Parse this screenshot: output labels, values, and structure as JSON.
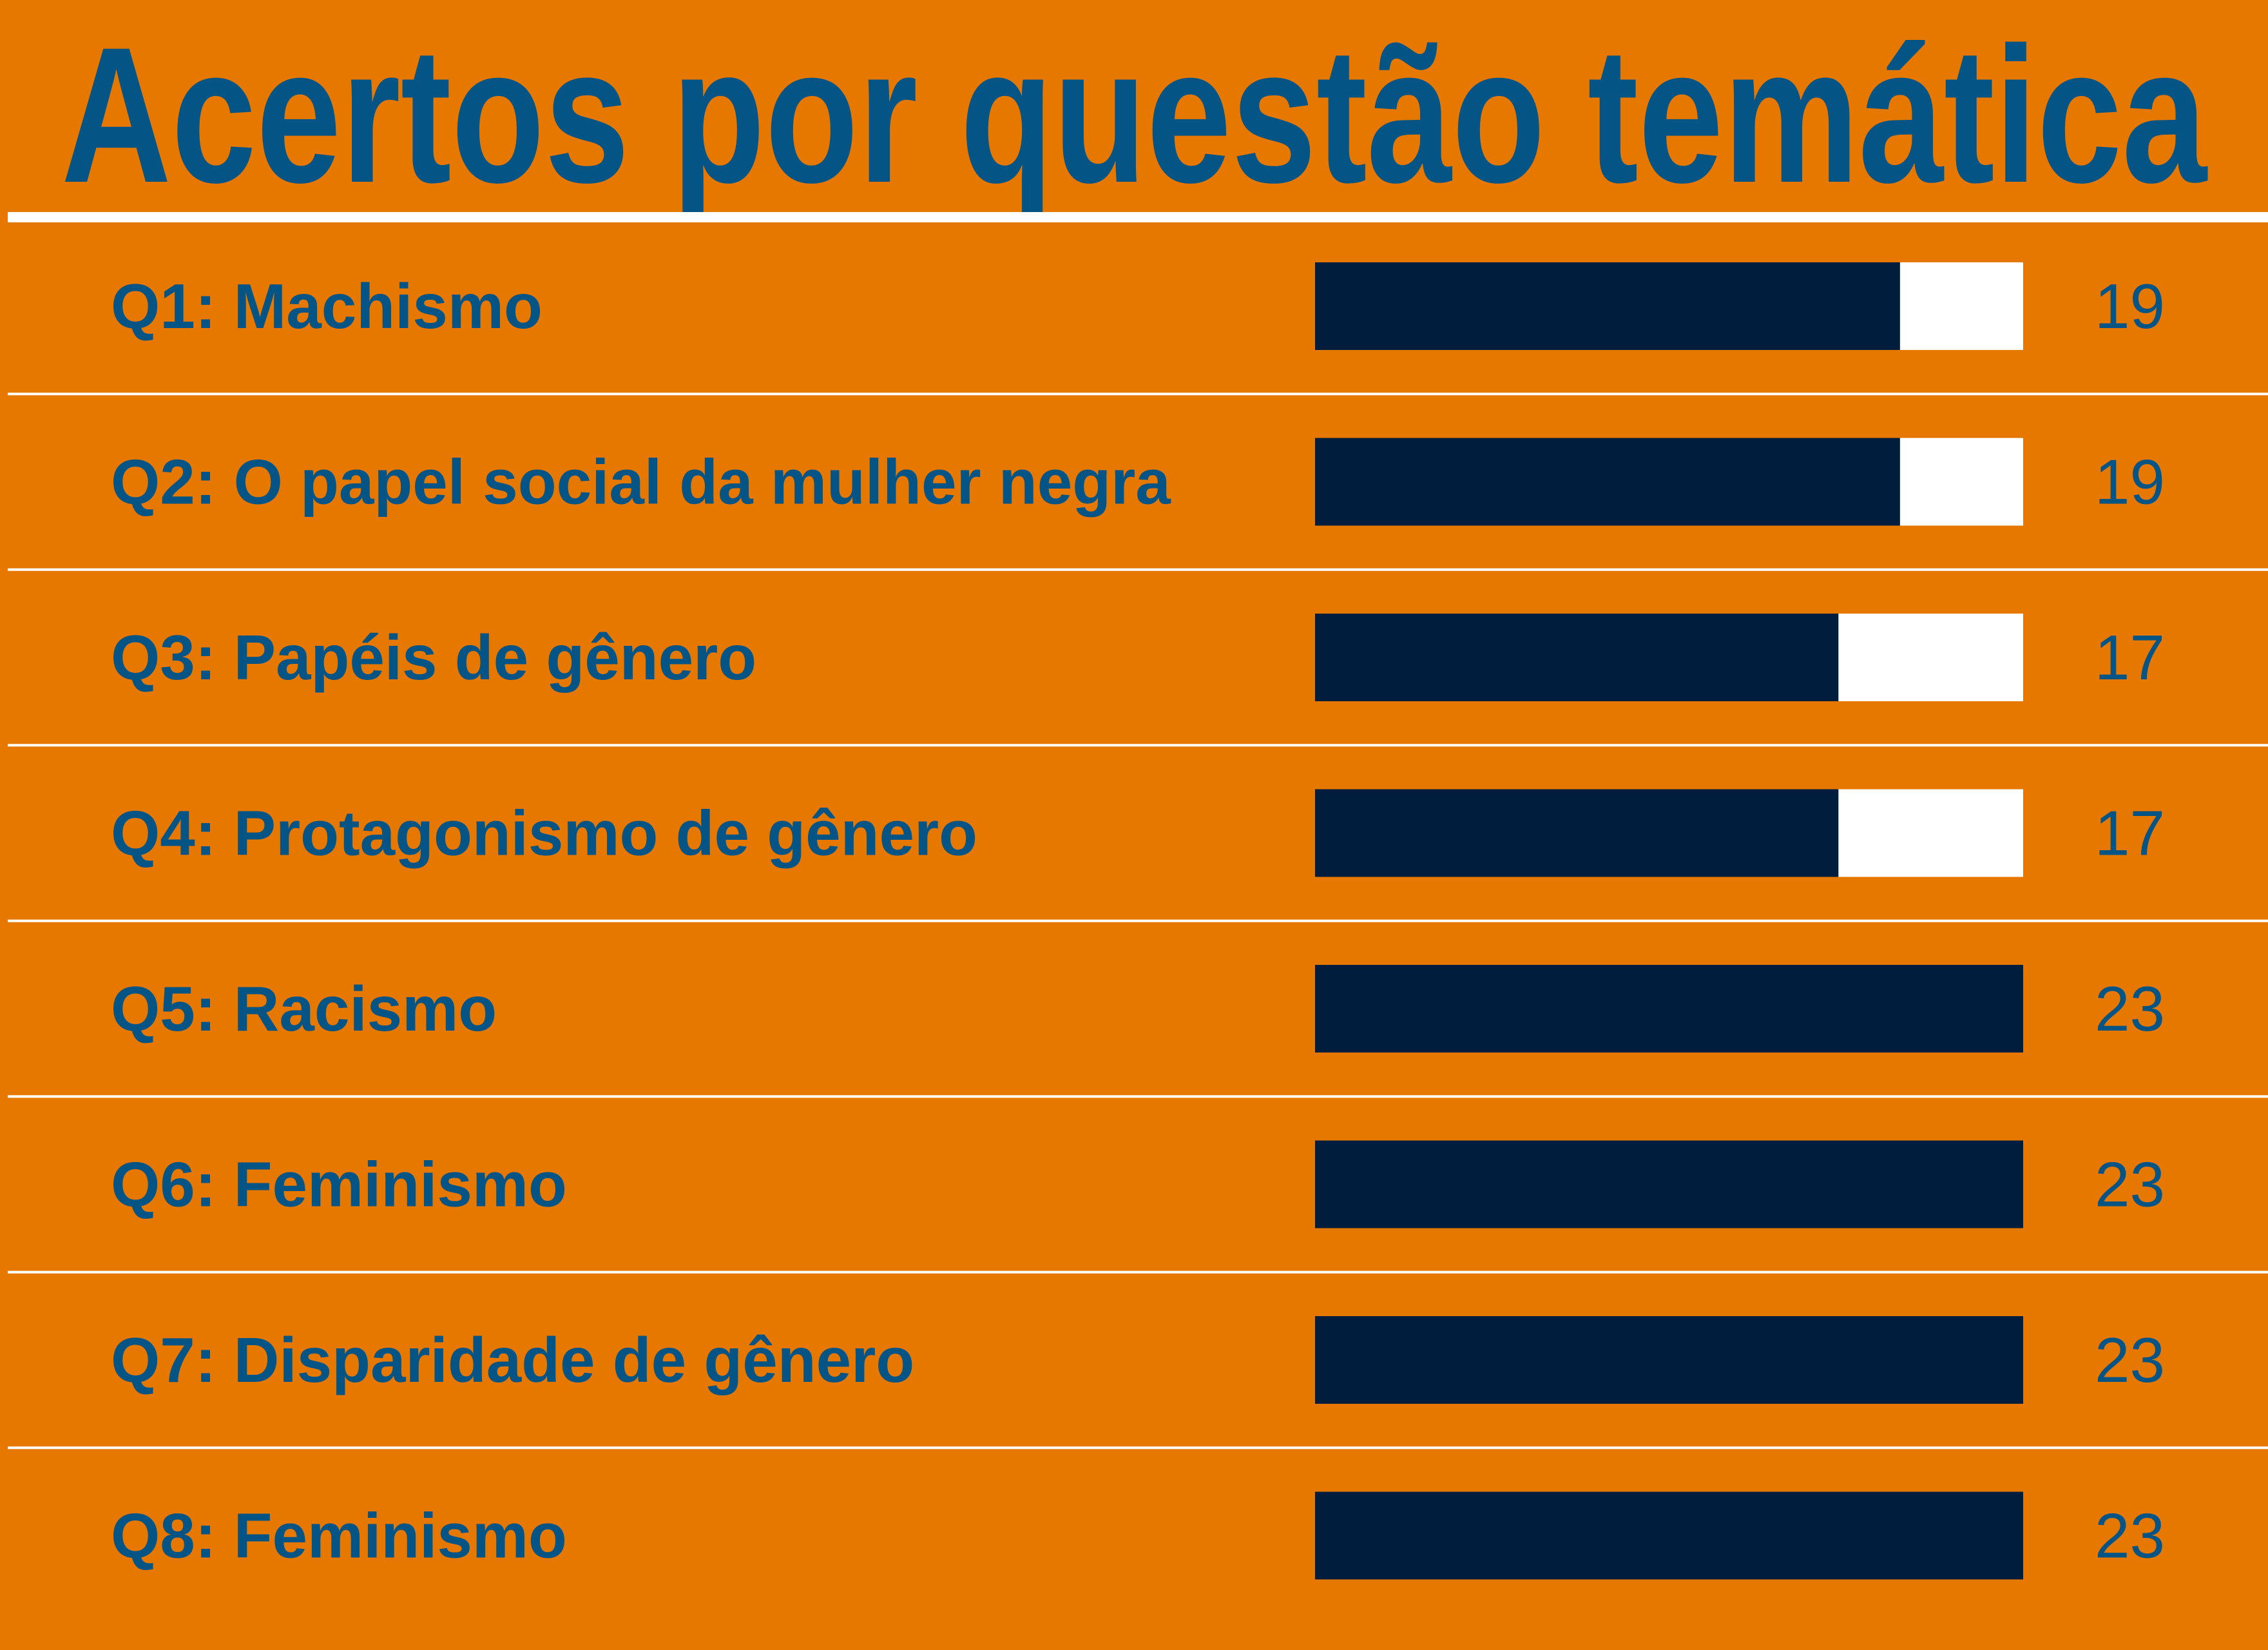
{
  "chart_data": {
    "type": "bar",
    "orientation": "horizontal",
    "title": "Acertos por questão temática",
    "categories": [
      "Q1: Machismo",
      "Q2: O papel social da mulher negra",
      "Q3: Papéis de gênero",
      "Q4: Protagonismo de gênero",
      "Q5: Racismo",
      "Q6: Feminismo",
      "Q7: Disparidade de gênero",
      "Q8: Feminismo"
    ],
    "values": [
      19,
      19,
      17,
      17,
      23,
      23,
      23,
      23
    ],
    "value_labels": [
      "19",
      "19",
      "17",
      "17",
      "23",
      "23",
      "23",
      "23"
    ],
    "xlim": [
      0,
      23
    ],
    "grid": false,
    "legend": "none"
  },
  "colors": {
    "background": "#E67800",
    "bar": "#001D3D",
    "bar_track": "#FFFFFF",
    "text": "#055486",
    "divider": "#FFFFFF"
  }
}
